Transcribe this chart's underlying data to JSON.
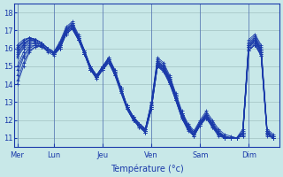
{
  "xlabel": "Température (°c)",
  "bg_color": "#c8e8e8",
  "line_color": "#1a3aaa",
  "grid_color": "#a0c0c0",
  "ylim": [
    10.5,
    18.5
  ],
  "yticks": [
    11,
    12,
    13,
    14,
    15,
    16,
    17,
    18
  ],
  "day_labels": [
    "Mer",
    "Lun",
    "Jeu",
    "Ven",
    "Sam",
    "Dim"
  ],
  "day_positions": [
    0,
    6,
    14,
    22,
    30,
    38
  ],
  "xlim": [
    -0.5,
    43
  ],
  "n_steps": 43,
  "series": [
    [
      16.0,
      16.4,
      16.6,
      16.5,
      16.3,
      16.0,
      15.8,
      16.4,
      17.2,
      17.5,
      16.8,
      15.9,
      15.0,
      14.5,
      15.0,
      15.5,
      14.8,
      13.8,
      12.8,
      12.2,
      11.8,
      11.5,
      13.0,
      15.5,
      15.2,
      14.5,
      13.5,
      12.5,
      11.8,
      11.4,
      12.0,
      12.5,
      12.0,
      11.5,
      11.2,
      11.1,
      11.0,
      11.5,
      16.5,
      16.8,
      16.2,
      11.5,
      11.2
    ],
    [
      15.8,
      16.2,
      16.5,
      16.4,
      16.2,
      15.9,
      15.7,
      16.2,
      17.0,
      17.3,
      16.6,
      15.8,
      14.9,
      14.4,
      14.9,
      15.4,
      14.7,
      13.7,
      12.7,
      12.1,
      11.7,
      11.4,
      12.8,
      15.2,
      15.0,
      14.3,
      13.3,
      12.3,
      11.6,
      11.2,
      11.8,
      12.3,
      11.8,
      11.3,
      11.1,
      11.0,
      11.0,
      11.3,
      16.2,
      16.5,
      15.9,
      11.4,
      11.1
    ],
    [
      15.5,
      16.0,
      16.3,
      16.3,
      16.1,
      15.8,
      15.6,
      16.0,
      16.8,
      17.1,
      16.5,
      15.7,
      14.8,
      14.3,
      14.8,
      15.3,
      14.6,
      13.6,
      12.6,
      12.0,
      11.6,
      11.3,
      12.6,
      15.0,
      14.8,
      14.1,
      13.1,
      12.1,
      11.5,
      11.1,
      11.7,
      12.2,
      11.7,
      11.2,
      11.0,
      11.0,
      11.0,
      11.2,
      15.9,
      16.2,
      15.7,
      11.3,
      11.0
    ],
    [
      16.2,
      16.5,
      16.6,
      16.5,
      16.3,
      16.0,
      15.8,
      16.3,
      17.1,
      17.4,
      16.7,
      15.9,
      15.0,
      14.5,
      15.0,
      15.5,
      14.8,
      13.8,
      12.8,
      12.2,
      11.8,
      11.5,
      13.0,
      15.4,
      15.1,
      14.4,
      13.4,
      12.4,
      11.7,
      11.3,
      11.9,
      12.4,
      11.9,
      11.4,
      11.1,
      11.0,
      11.0,
      11.4,
      16.4,
      16.7,
      16.1,
      11.4,
      11.1
    ],
    [
      14.5,
      15.5,
      16.0,
      16.2,
      16.1,
      15.9,
      15.7,
      16.1,
      16.9,
      17.2,
      16.6,
      15.8,
      14.9,
      14.5,
      15.0,
      15.4,
      14.7,
      13.8,
      12.8,
      12.2,
      11.8,
      11.5,
      12.9,
      15.3,
      15.0,
      14.3,
      13.4,
      12.4,
      11.7,
      11.3,
      11.9,
      12.3,
      11.8,
      11.3,
      11.1,
      11.0,
      11.0,
      11.3,
      16.3,
      16.6,
      16.0,
      11.3,
      11.0
    ],
    [
      15.9,
      16.3,
      16.5,
      16.4,
      16.2,
      15.9,
      15.7,
      16.2,
      17.0,
      17.3,
      16.6,
      15.8,
      14.9,
      14.4,
      14.9,
      15.4,
      14.7,
      13.7,
      12.7,
      12.1,
      11.7,
      11.4,
      12.8,
      15.2,
      14.9,
      14.2,
      13.3,
      12.3,
      11.6,
      11.2,
      11.8,
      12.3,
      11.8,
      11.3,
      11.0,
      11.0,
      11.0,
      11.3,
      16.2,
      16.5,
      15.9,
      11.3,
      11.0
    ],
    [
      15.0,
      15.8,
      16.2,
      16.3,
      16.2,
      15.9,
      15.7,
      16.1,
      16.9,
      17.2,
      16.5,
      15.7,
      14.8,
      14.4,
      14.9,
      15.3,
      14.6,
      13.7,
      12.7,
      12.1,
      11.7,
      11.4,
      12.7,
      15.1,
      14.8,
      14.2,
      13.2,
      12.2,
      11.5,
      11.2,
      11.8,
      12.2,
      11.7,
      11.2,
      11.0,
      11.0,
      11.0,
      11.2,
      16.1,
      16.4,
      15.8,
      11.2,
      11.0
    ],
    [
      14.8,
      15.6,
      16.1,
      16.2,
      16.1,
      15.9,
      15.7,
      16.0,
      16.8,
      17.1,
      16.5,
      15.7,
      14.8,
      14.4,
      14.9,
      15.3,
      14.6,
      13.6,
      12.7,
      12.1,
      11.7,
      11.4,
      12.7,
      15.1,
      14.8,
      14.1,
      13.2,
      12.2,
      11.5,
      11.2,
      11.7,
      12.2,
      11.7,
      11.2,
      11.0,
      11.0,
      11.0,
      11.2,
      16.0,
      16.3,
      15.7,
      11.2,
      11.0
    ],
    [
      16.0,
      16.4,
      16.6,
      16.5,
      16.3,
      16.0,
      15.8,
      16.2,
      17.0,
      17.3,
      16.6,
      15.8,
      14.9,
      14.4,
      14.9,
      15.4,
      14.7,
      13.7,
      12.7,
      12.1,
      11.7,
      11.4,
      12.8,
      15.2,
      14.9,
      14.3,
      13.3,
      12.3,
      11.6,
      11.2,
      11.8,
      12.3,
      11.8,
      11.3,
      11.0,
      11.0,
      11.0,
      11.3,
      16.2,
      16.5,
      15.9,
      11.3,
      11.0
    ],
    [
      14.2,
      15.2,
      15.9,
      16.1,
      16.1,
      15.9,
      15.7,
      16.0,
      16.8,
      17.1,
      16.5,
      15.7,
      14.8,
      14.4,
      14.8,
      15.2,
      14.5,
      13.6,
      12.6,
      12.0,
      11.7,
      11.3,
      12.6,
      15.0,
      14.7,
      14.1,
      13.1,
      12.1,
      11.5,
      11.1,
      11.7,
      12.1,
      11.6,
      11.2,
      11.0,
      11.0,
      11.0,
      11.1,
      15.9,
      16.2,
      15.6,
      11.2,
      11.0
    ],
    [
      15.7,
      16.2,
      16.5,
      16.5,
      16.3,
      16.0,
      15.8,
      16.2,
      17.0,
      17.3,
      16.6,
      15.8,
      14.9,
      14.4,
      14.9,
      15.3,
      14.7,
      13.7,
      12.7,
      12.1,
      11.7,
      11.4,
      12.8,
      15.1,
      14.9,
      14.2,
      13.3,
      12.3,
      11.6,
      11.2,
      11.8,
      12.2,
      11.7,
      11.3,
      11.0,
      11.0,
      11.0,
      11.3,
      16.1,
      16.4,
      15.8,
      11.3,
      11.0
    ],
    [
      16.1,
      16.4,
      16.6,
      16.5,
      16.3,
      16.0,
      15.8,
      16.3,
      17.1,
      17.4,
      16.7,
      15.9,
      15.0,
      14.5,
      15.0,
      15.4,
      14.7,
      13.8,
      12.8,
      12.2,
      11.8,
      11.5,
      12.9,
      15.3,
      15.0,
      14.4,
      13.4,
      12.4,
      11.7,
      11.3,
      11.9,
      12.3,
      11.8,
      11.3,
      11.1,
      11.0,
      11.0,
      11.3,
      16.3,
      16.6,
      16.0,
      11.4,
      11.1
    ],
    [
      15.6,
      16.1,
      16.4,
      16.4,
      16.2,
      15.9,
      15.7,
      16.1,
      16.9,
      17.2,
      16.5,
      15.7,
      14.8,
      14.4,
      14.9,
      15.3,
      14.6,
      13.7,
      12.7,
      12.1,
      11.7,
      11.4,
      12.7,
      15.1,
      14.8,
      14.2,
      13.2,
      12.2,
      11.5,
      11.2,
      11.8,
      12.2,
      11.7,
      11.2,
      11.0,
      11.0,
      11.0,
      11.2,
      16.1,
      16.4,
      15.8,
      11.2,
      11.0
    ],
    [
      14.0,
      15.0,
      15.8,
      16.1,
      16.1,
      15.9,
      15.7,
      16.0,
      16.8,
      17.1,
      16.5,
      15.7,
      14.8,
      14.3,
      14.8,
      15.2,
      14.5,
      13.5,
      12.6,
      12.0,
      11.6,
      11.3,
      12.6,
      15.0,
      14.7,
      14.0,
      13.1,
      12.1,
      11.4,
      11.1,
      11.7,
      12.1,
      11.6,
      11.1,
      11.0,
      11.0,
      11.0,
      11.1,
      15.9,
      16.2,
      15.6,
      11.1,
      11.0
    ]
  ]
}
